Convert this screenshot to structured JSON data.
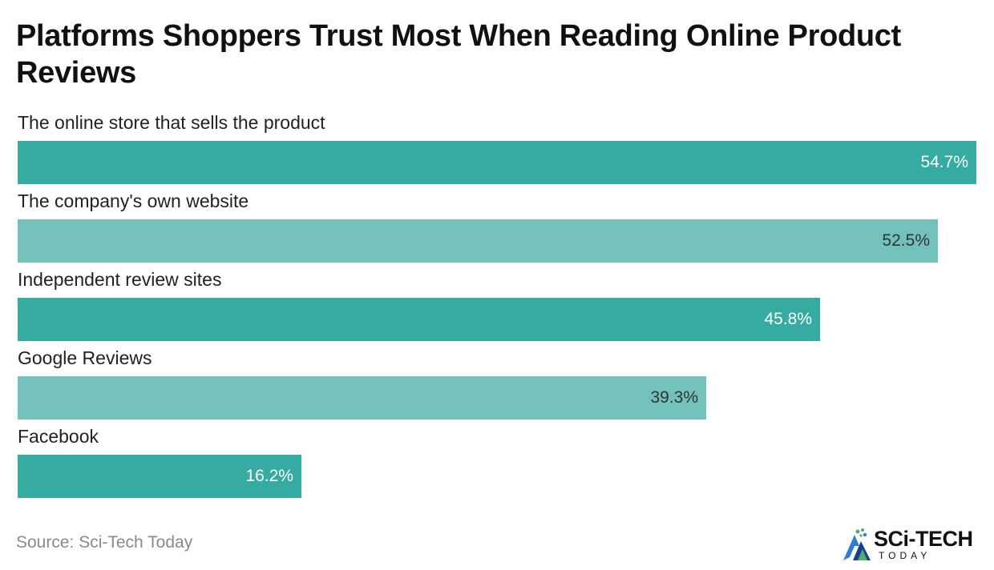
{
  "title": "Platforms Shoppers Trust Most When Reading Online Product Reviews",
  "source": "Source: Sci-Tech Today",
  "logo": {
    "main": "SCi-TECH",
    "sub": "TODAY"
  },
  "colors": {
    "dark": "#36aba1",
    "light": "#72c2bb",
    "label_on_dark": "#ffffff",
    "label_on_light": "#333333"
  },
  "chart_data": {
    "type": "bar",
    "orientation": "horizontal",
    "categories": [
      "The online store that sells the product",
      "The company's own website",
      "Independent review sites",
      "Google Reviews",
      "Facebook"
    ],
    "values": [
      54.7,
      52.5,
      45.8,
      39.3,
      16.2
    ],
    "value_labels": [
      "54.7%",
      "52.5%",
      "45.8%",
      "39.3%",
      "16.2%"
    ],
    "unit": "%",
    "xlim": [
      0,
      54.7
    ],
    "grid": false
  }
}
